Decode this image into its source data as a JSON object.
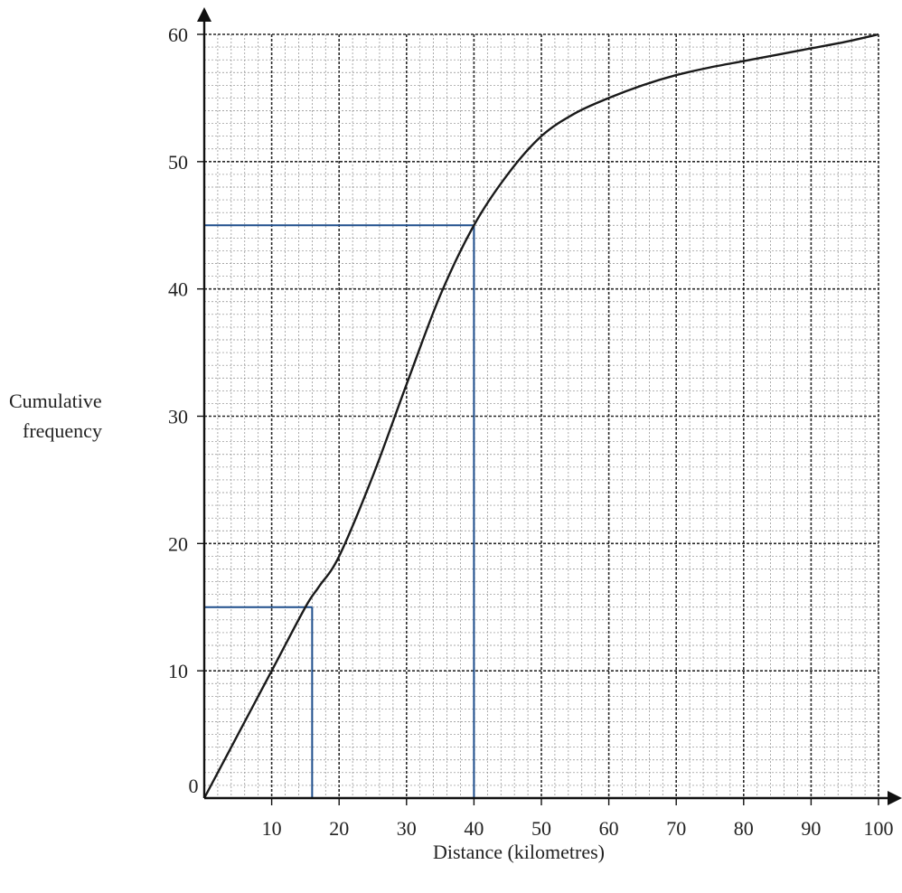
{
  "chart_data": {
    "type": "line",
    "xlabel": "Distance (kilometres)",
    "ylabel_lines": [
      "Cumulative",
      "frequency"
    ],
    "origin_label": "0",
    "xlim": [
      0,
      100
    ],
    "ylim": [
      0,
      60
    ],
    "x_ticks": [
      10,
      20,
      30,
      40,
      50,
      60,
      70,
      80,
      90,
      100
    ],
    "y_ticks": [
      10,
      20,
      30,
      40,
      50,
      60
    ],
    "x_ticks_labels": [
      "10",
      "20",
      "30",
      "40",
      "50",
      "60",
      "70",
      "80",
      "90",
      "100"
    ],
    "y_ticks_labels": [
      "10",
      "20",
      "30",
      "40",
      "50",
      "60"
    ],
    "grid": true,
    "series": [
      {
        "color": "#1a1a1a",
        "points": [
          [
            0,
            0
          ],
          [
            5,
            5
          ],
          [
            10,
            10
          ],
          [
            15,
            15
          ],
          [
            17,
            16.6
          ],
          [
            20,
            19
          ],
          [
            25,
            25.3
          ],
          [
            30,
            32.5
          ],
          [
            35,
            39.5
          ],
          [
            40,
            45
          ],
          [
            45,
            49
          ],
          [
            50,
            52
          ],
          [
            55,
            53.8
          ],
          [
            60,
            55
          ],
          [
            65,
            56
          ],
          [
            70,
            56.8
          ],
          [
            75,
            57.4
          ],
          [
            80,
            57.9
          ],
          [
            85,
            58.4
          ],
          [
            90,
            58.9
          ],
          [
            95,
            59.4
          ],
          [
            100,
            60
          ]
        ]
      }
    ],
    "reading_lines": [
      {
        "color": "#1f4e8c",
        "x": 16,
        "y": 15
      },
      {
        "color": "#1f4e8c",
        "x": 40,
        "y": 45
      }
    ]
  }
}
